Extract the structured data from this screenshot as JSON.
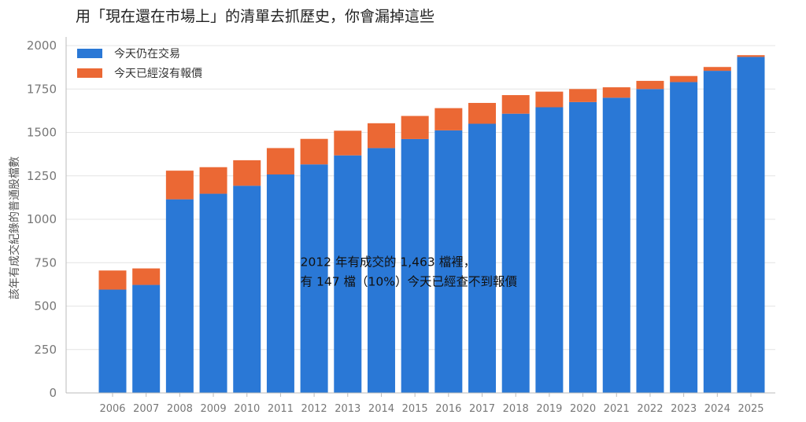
{
  "chart_data": {
    "type": "bar",
    "stacked": true,
    "title": "用「現在還在市場上」的清單去抓歷史，你會漏掉這些",
    "xlabel": "",
    "ylabel": "該年有成交紀錄的普通股檔數",
    "ylim": [
      0,
      2050
    ],
    "yticks": [
      0,
      250,
      500,
      750,
      1000,
      1250,
      1500,
      1750,
      2000
    ],
    "grid": "horizontal",
    "legend_position": "top-left",
    "categories": [
      "2006",
      "2007",
      "2008",
      "2009",
      "2010",
      "2011",
      "2012",
      "2013",
      "2014",
      "2015",
      "2016",
      "2017",
      "2018",
      "2019",
      "2020",
      "2021",
      "2022",
      "2023",
      "2024",
      "2025"
    ],
    "series": [
      {
        "name": "今天仍在交易",
        "color": "#2a78d6",
        "values": [
          595,
          622,
          1115,
          1147,
          1193,
          1258,
          1316,
          1368,
          1410,
          1462,
          1512,
          1550,
          1608,
          1645,
          1675,
          1700,
          1750,
          1790,
          1855,
          1935
        ]
      },
      {
        "name": "今天已經沒有報價",
        "color": "#eb6834",
        "values": [
          110,
          95,
          165,
          153,
          147,
          152,
          147,
          142,
          143,
          133,
          128,
          120,
          107,
          90,
          75,
          60,
          47,
          35,
          22,
          10
        ]
      }
    ],
    "annotation": {
      "lines": [
        "2012 年有成交的 1,463 檔裡，",
        "有 147 檔（10%）今天已經查不到報價"
      ],
      "anchor_category": "2012",
      "anchor_value": 750
    }
  }
}
